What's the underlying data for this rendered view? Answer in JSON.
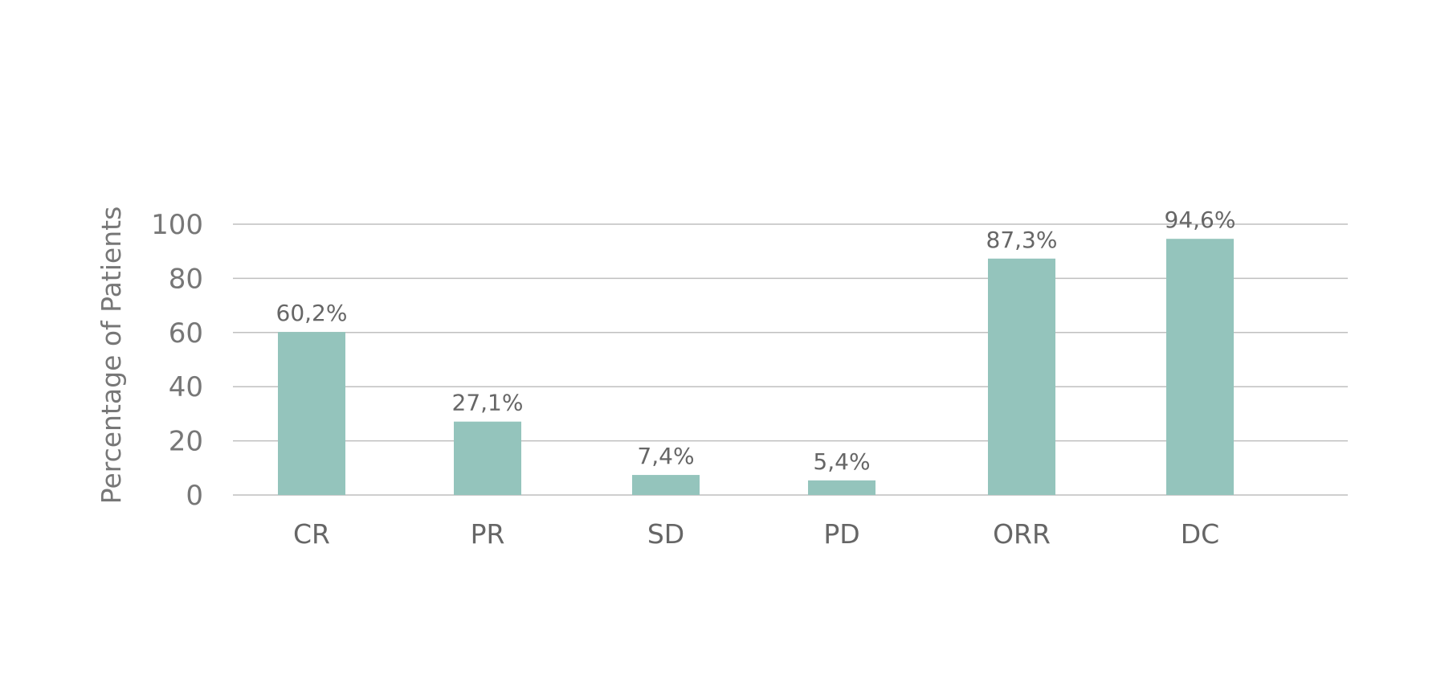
{
  "chart_data": {
    "type": "bar",
    "title": "",
    "xlabel": "",
    "ylabel": "Percentage of Patients",
    "ylim": [
      0,
      100
    ],
    "yticks": [
      "0",
      "20",
      "40",
      "60",
      "80",
      "100"
    ],
    "grid": true,
    "legend": "none",
    "categories": [
      "CR",
      "PR",
      "SD",
      "PD",
      "ORR",
      "DC"
    ],
    "values": [
      60.2,
      27.1,
      7.4,
      5.4,
      87.3,
      94.6
    ],
    "value_labels": [
      "60,2%",
      "27,1%",
      "7,4%",
      "5,4%",
      "87,3%",
      "94,6%"
    ],
    "colors": {
      "bar": "#94c4bc",
      "grid": "#bfbfbf",
      "text": "#666666"
    }
  }
}
